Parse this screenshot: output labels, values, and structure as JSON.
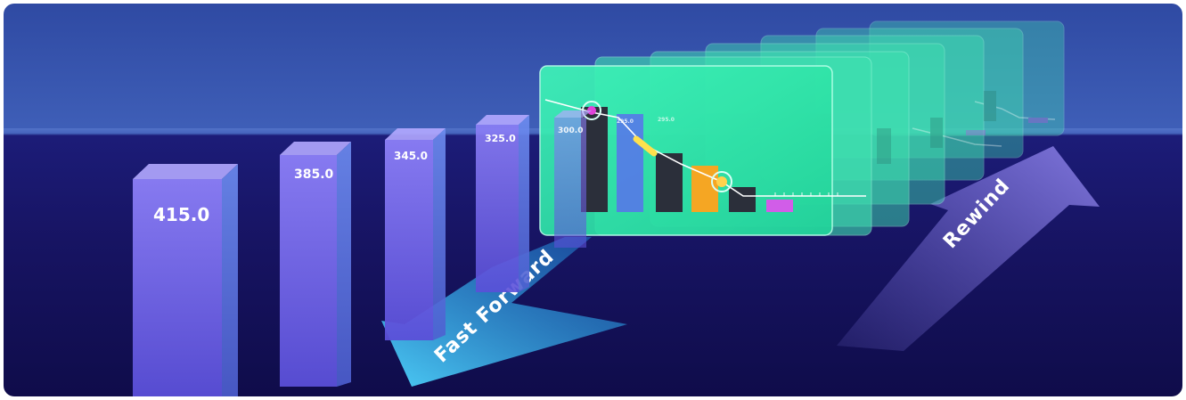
{
  "bars": [
    {
      "label": "415.0",
      "value": 415.0
    },
    {
      "label": "385.0",
      "value": 385.0
    },
    {
      "label": "345.0",
      "value": 345.0
    },
    {
      "label": "325.0",
      "value": 325.0
    }
  ],
  "panel": {
    "tag_1": "300.0",
    "tag_2": "295.0",
    "tag_3": "295.0"
  },
  "arrows": {
    "forward": "Fast Forward",
    "back": "Rewind"
  },
  "colors": {
    "bar_purple": "#7b6cf0",
    "panel_green": "#2ee3a3",
    "arrow_blue": "#38c4f7",
    "sky": "#3f5fb8",
    "floor": "#171463"
  }
}
